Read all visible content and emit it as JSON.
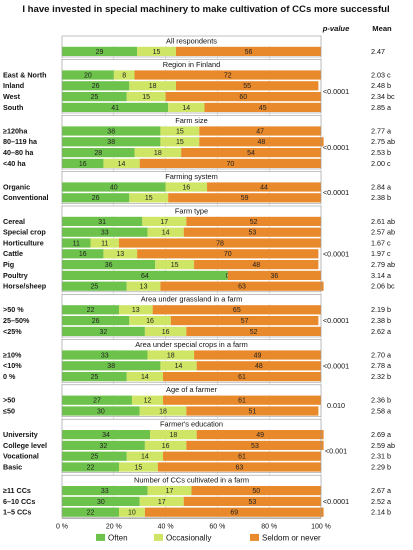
{
  "chart_data": {
    "type": "bar",
    "stacked": true,
    "orientation": "horizontal",
    "title": "I have invested in special machinery to make cultivation of CCs more successful",
    "columns": {
      "pvalue": "p-value",
      "mean": "Mean"
    },
    "xlim": [
      0,
      100
    ],
    "xticks": [
      "0 %",
      "20 %",
      "40 %",
      "60 %",
      "80 %",
      "100 %"
    ],
    "grid": "vertical",
    "legend_position": "bottom",
    "series": [
      {
        "name": "Often",
        "color": "#6cc24a"
      },
      {
        "name": "Occasionally",
        "color": "#cfe566"
      },
      {
        "name": "Seldom or never",
        "color": "#e8892c"
      }
    ],
    "groups": [
      {
        "title": "All respondents",
        "pvalue": "",
        "rows": [
          {
            "label": "",
            "values": [
              29,
              15,
              56
            ],
            "mean": "2.47"
          }
        ]
      },
      {
        "title": "Region in Finland",
        "pvalue": "<0.0001",
        "rows": [
          {
            "label": "East & North",
            "values": [
              20,
              8,
              72
            ],
            "mean": "2.03 c"
          },
          {
            "label": "Inland",
            "values": [
              26,
              18,
              55
            ],
            "mean": "2.48 b"
          },
          {
            "label": "West",
            "values": [
              25,
              15,
              60
            ],
            "mean": "2.34 bc"
          },
          {
            "label": "South",
            "values": [
              41,
              14,
              45
            ],
            "mean": "2.85 a"
          }
        ]
      },
      {
        "title": "Farm size",
        "pvalue": "<0.0001",
        "rows": [
          {
            "label": "≥120ha",
            "values": [
              38,
              15,
              47
            ],
            "mean": "2.77 a"
          },
          {
            "label": "80–119 ha",
            "values": [
              38,
              15,
              48
            ],
            "mean": "2.75 ab"
          },
          {
            "label": "40–80 ha",
            "values": [
              28,
              18,
              54
            ],
            "mean": "2.53 b"
          },
          {
            "label": "<40 ha",
            "values": [
              16,
              14,
              70
            ],
            "mean": "2.00 c"
          }
        ]
      },
      {
        "title": "Farming system",
        "pvalue": "<0.0001",
        "rows": [
          {
            "label": "Organic",
            "values": [
              40,
              16,
              44
            ],
            "mean": "2.84 a"
          },
          {
            "label": "Conventional",
            "values": [
              26,
              15,
              59
            ],
            "mean": "2.38 b"
          }
        ]
      },
      {
        "title": "Farm type",
        "pvalue": "<0.0001",
        "rows": [
          {
            "label": "Cereal",
            "values": [
              31,
              17,
              52
            ],
            "mean": "2.61 ab"
          },
          {
            "label": "Special crop",
            "values": [
              33,
              14,
              53
            ],
            "mean": "2.57 ab"
          },
          {
            "label": "Horticulture",
            "values": [
              11,
              11,
              78
            ],
            "mean": "1.67 c"
          },
          {
            "label": "Cattle",
            "values": [
              16,
              13,
              70
            ],
            "mean": "1.97 c"
          },
          {
            "label": "Pig",
            "values": [
              36,
              15,
              48
            ],
            "mean": "2.79 ab"
          },
          {
            "label": "Poultry",
            "values": [
              64,
              0,
              36
            ],
            "mean": "3.14 a"
          },
          {
            "label": "Horse/sheep",
            "values": [
              25,
              13,
              63
            ],
            "mean": "2.06 bc"
          }
        ]
      },
      {
        "title": "Area under grassland in a farm",
        "pvalue": "<0.0001",
        "rows": [
          {
            "label": ">50 %",
            "values": [
              22,
              13,
              65
            ],
            "mean": "2.19 b"
          },
          {
            "label": "25–50%",
            "values": [
              26,
              16,
              57
            ],
            "mean": "2.38 b"
          },
          {
            "label": "<25%",
            "values": [
              32,
              16,
              52
            ],
            "mean": "2.62 a"
          }
        ]
      },
      {
        "title": "Area under special crops in a farm",
        "pvalue": "<0.0001",
        "rows": [
          {
            "label": "≥10%",
            "values": [
              33,
              18,
              49
            ],
            "mean": "2.70 a"
          },
          {
            "label": "<10%",
            "values": [
              38,
              14,
              48
            ],
            "mean": "2.78 a"
          },
          {
            "label": "0 %",
            "values": [
              25,
              14,
              61
            ],
            "mean": "2.32 b"
          }
        ]
      },
      {
        "title": "Age of a farmer",
        "pvalue": "0.010",
        "rows": [
          {
            "label": ">50",
            "values": [
              27,
              12,
              61
            ],
            "mean": "2.36 b"
          },
          {
            "label": "≤50",
            "values": [
              30,
              18,
              51
            ],
            "mean": "2.58 a"
          }
        ]
      },
      {
        "title": "Farmer's education",
        "pvalue": "<0.001",
        "rows": [
          {
            "label": "University",
            "values": [
              34,
              18,
              49
            ],
            "mean": "2.69 a"
          },
          {
            "label": "College level",
            "values": [
              32,
              16,
              53
            ],
            "mean": "2.59 ab"
          },
          {
            "label": "Vocational",
            "values": [
              25,
              14,
              61
            ],
            "mean": "2.31 b"
          },
          {
            "label": "Basic",
            "values": [
              22,
              15,
              63
            ],
            "mean": "2.29 b"
          }
        ]
      },
      {
        "title": "Number of CCs cultivated in a farm",
        "pvalue": "<0.0001",
        "rows": [
          {
            "label": "≥11 CCs",
            "values": [
              33,
              17,
              50
            ],
            "mean": "2.67 a"
          },
          {
            "label": "6–10 CCs",
            "values": [
              30,
              17,
              53
            ],
            "mean": "2.52 a"
          },
          {
            "label": "1–5 CCs",
            "values": [
              22,
              10,
              69
            ],
            "mean": "2.14 b"
          }
        ]
      }
    ]
  }
}
